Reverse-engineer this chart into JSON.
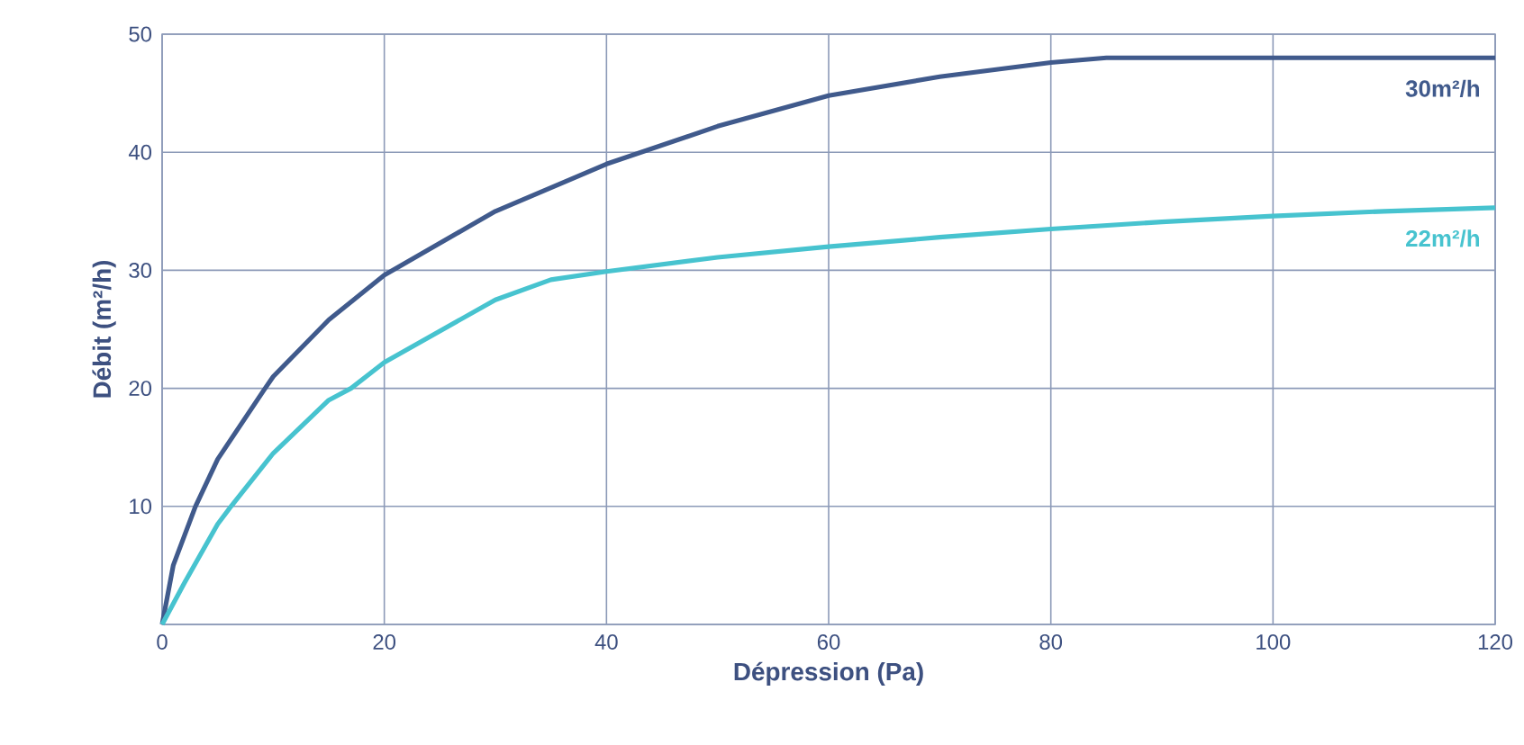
{
  "chart_data": {
    "type": "line",
    "xlabel": "Dépression (Pa)",
    "ylabel": "Débit (m²/h)",
    "xlim": [
      0,
      120
    ],
    "ylim": [
      0,
      50
    ],
    "xticks": [
      0,
      20,
      40,
      60,
      80,
      100,
      120
    ],
    "yticks": [
      {
        "value": 0,
        "label": null
      },
      10,
      20,
      30,
      40,
      50
    ],
    "grid": true,
    "legend": false,
    "marker": "none",
    "line_style": "solid",
    "series": [
      {
        "name": "30m²/h",
        "color": "#405a8c",
        "x": [
          0,
          1,
          3,
          5,
          9.2,
          10,
          15,
          20,
          30,
          40,
          50,
          60,
          70,
          80,
          85,
          90,
          100,
          110,
          120
        ],
        "values": [
          0,
          5,
          10,
          14,
          19.9,
          21,
          25.8,
          29.6,
          35,
          39,
          42.2,
          44.8,
          46.4,
          47.6,
          48,
          48,
          48,
          48,
          48
        ]
      },
      {
        "name": "22m²/h",
        "color": "#47c3cf",
        "x": [
          0,
          2,
          5,
          6.2,
          10,
          15,
          17,
          20,
          30,
          35,
          40,
          50,
          60,
          70,
          80,
          90,
          100,
          110,
          120
        ],
        "values": [
          0,
          3.5,
          8.5,
          10,
          14.5,
          19,
          20,
          22.2,
          27.5,
          29.2,
          29.9,
          31.1,
          32,
          32.8,
          33.5,
          34.1,
          34.6,
          35,
          35.3
        ]
      }
    ]
  }
}
